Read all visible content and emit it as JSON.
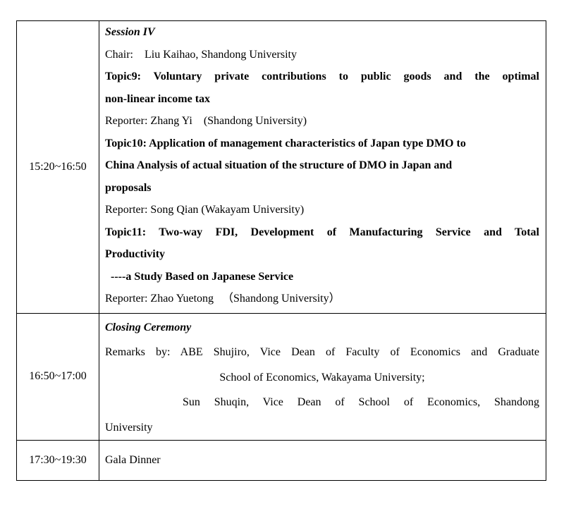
{
  "rows": [
    {
      "time": "15:20~16:50",
      "title": "Session IV",
      "chair": "Chair:    Liu Kaihao, Shandong University",
      "topic9": [
        "Topic9: Voluntary private contributions to public goods and the optimal",
        "non-linear income tax"
      ],
      "reporter9": "Reporter: Zhang Yi    (Shandong University)",
      "topic10": [
        "Topic10: Application of management characteristics of Japan type DMO to",
        "China Analysis of actual situation of the structure of DMO in Japan and",
        "proposals"
      ],
      "reporter10": "Reporter: Song Qian (Wakayam University)",
      "topic11": [
        "Topic11: Two-way FDI, Development of Manufacturing Service and Total",
        "Productivity",
        "----a Study Based on Japanese Service"
      ],
      "reporter11": "Reporter: Zhao Yuetong   （Shandong University）"
    },
    {
      "time": "16:50~17:00",
      "title": "Closing Ceremony",
      "remarks": [
        "Remarks by: ABE Shujiro, Vice Dean of Faculty of Economics and Graduate",
        "School of Economics, Wakayama University;",
        "Sun Shuqin, Vice Dean of School of Economics, Shandong",
        "University"
      ]
    },
    {
      "time": "17:30~19:30",
      "title": "Gala Dinner"
    }
  ]
}
